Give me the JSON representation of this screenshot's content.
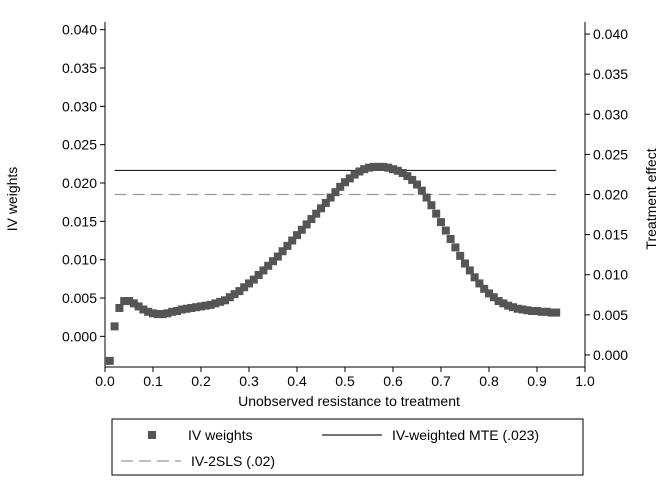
{
  "chart_data": {
    "type": "scatter",
    "title": "",
    "xlabel": "Unobserved resistance to treatment",
    "ylabel": "IV weights",
    "y2label": "Treatment effect",
    "xlim": [
      0,
      1
    ],
    "ylim": [
      -0.004,
      0.041
    ],
    "y2lim": [
      -0.0015,
      0.0415
    ],
    "x_ticks": [
      "0.0",
      "0.1",
      "0.2",
      "0.3",
      "0.4",
      "0.5",
      "0.6",
      "0.7",
      "0.8",
      "0.9",
      "1.0"
    ],
    "y_ticks": [
      "0.000",
      "0.005",
      "0.010",
      "0.015",
      "0.020",
      "0.025",
      "0.030",
      "0.035",
      "0.040"
    ],
    "y2_ticks": [
      "0.000",
      "0.005",
      "0.010",
      "0.015",
      "0.020",
      "0.025",
      "0.030",
      "0.035",
      "0.040"
    ],
    "grid": false,
    "legend_position": "bottom",
    "series": [
      {
        "name": "IV weights",
        "kind": "markers",
        "axis": "left",
        "color": "#555555",
        "x": [
          0.01,
          0.02,
          0.03,
          0.04,
          0.05,
          0.06,
          0.07,
          0.08,
          0.09,
          0.1,
          0.11,
          0.12,
          0.13,
          0.14,
          0.15,
          0.16,
          0.17,
          0.18,
          0.19,
          0.2,
          0.21,
          0.22,
          0.23,
          0.24,
          0.25,
          0.26,
          0.27,
          0.28,
          0.29,
          0.3,
          0.31,
          0.32,
          0.33,
          0.34,
          0.35,
          0.36,
          0.37,
          0.38,
          0.39,
          0.4,
          0.41,
          0.42,
          0.43,
          0.44,
          0.45,
          0.46,
          0.47,
          0.48,
          0.49,
          0.5,
          0.51,
          0.52,
          0.53,
          0.54,
          0.55,
          0.56,
          0.57,
          0.58,
          0.59,
          0.6,
          0.61,
          0.62,
          0.63,
          0.64,
          0.65,
          0.66,
          0.67,
          0.68,
          0.69,
          0.7,
          0.71,
          0.72,
          0.73,
          0.74,
          0.75,
          0.76,
          0.77,
          0.78,
          0.79,
          0.8,
          0.81,
          0.82,
          0.83,
          0.84,
          0.85,
          0.86,
          0.87,
          0.88,
          0.89,
          0.9,
          0.91,
          0.92,
          0.93,
          0.94
        ],
        "values": [
          -0.0032,
          0.0013,
          0.0037,
          0.0046,
          0.0046,
          0.0043,
          0.0039,
          0.0035,
          0.0032,
          0.003,
          0.0029,
          0.0029,
          0.003,
          0.0032,
          0.0033,
          0.0035,
          0.0036,
          0.0037,
          0.0038,
          0.0039,
          0.004,
          0.0041,
          0.0043,
          0.0045,
          0.0047,
          0.0051,
          0.0055,
          0.0059,
          0.0064,
          0.0069,
          0.0074,
          0.008,
          0.0086,
          0.0092,
          0.0098,
          0.0104,
          0.0111,
          0.0118,
          0.0125,
          0.0132,
          0.0139,
          0.0146,
          0.0153,
          0.016,
          0.0167,
          0.0174,
          0.0181,
          0.0188,
          0.0195,
          0.0201,
          0.0206,
          0.0211,
          0.0215,
          0.0218,
          0.022,
          0.0221,
          0.0221,
          0.0221,
          0.022,
          0.0218,
          0.0216,
          0.0213,
          0.0209,
          0.0204,
          0.0198,
          0.019,
          0.0181,
          0.0171,
          0.016,
          0.0149,
          0.0138,
          0.0127,
          0.0116,
          0.0105,
          0.0095,
          0.0086,
          0.0077,
          0.0069,
          0.0062,
          0.0056,
          0.0051,
          0.0046,
          0.0043,
          0.004,
          0.0038,
          0.0036,
          0.0035,
          0.0034,
          0.0033,
          0.0033,
          0.0032,
          0.0032,
          0.0031,
          0.0031
        ]
      },
      {
        "name": "IV-weighted MTE (.023)",
        "kind": "hline",
        "axis": "right",
        "color": "#222222",
        "x_range": [
          0.02,
          0.94
        ],
        "value": 0.023
      },
      {
        "name": "IV-2SLS (.02)",
        "kind": "hline-dashed",
        "axis": "right",
        "color": "#999999",
        "x_range": [
          0.02,
          0.94
        ],
        "value": 0.02
      }
    ]
  }
}
